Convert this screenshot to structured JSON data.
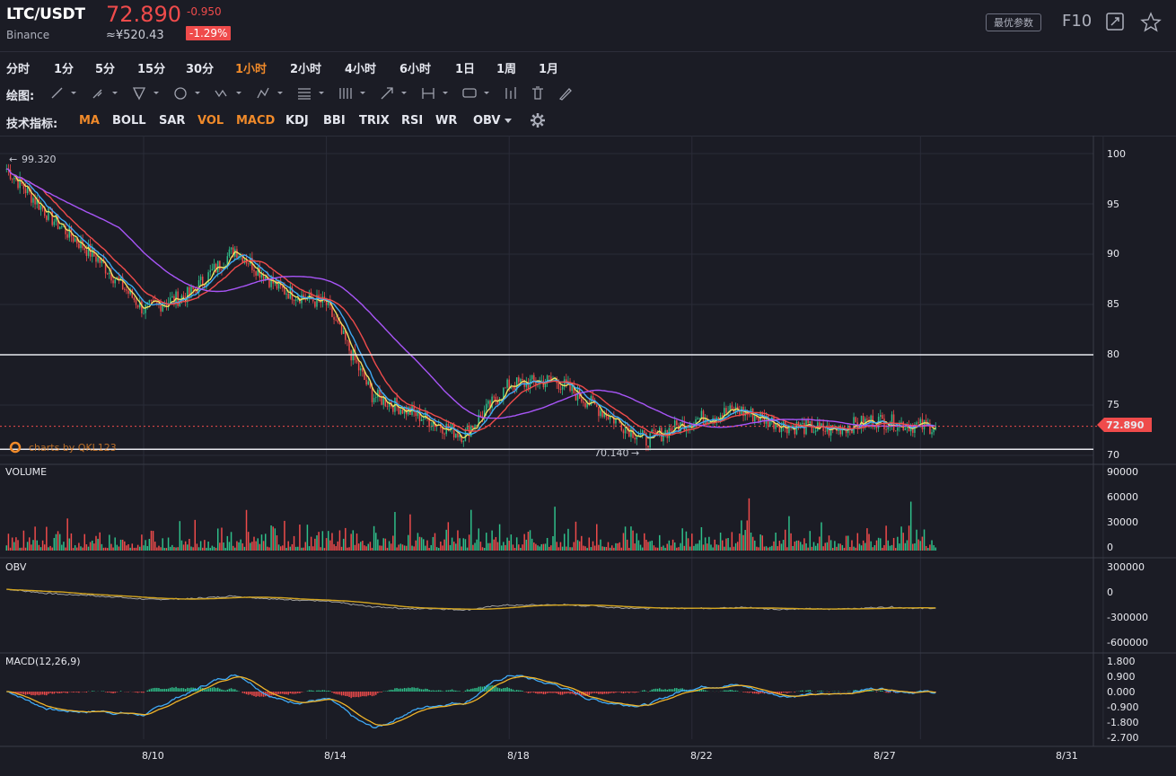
{
  "header": {
    "symbol": "LTC/USDT",
    "exchange": "Binance",
    "price": "72.890",
    "change": "-0.950",
    "cny_price": "≈¥520.43",
    "change_pct": "-1.29%",
    "best_params_label": "最优参数",
    "f10_label": "F10",
    "icons": [
      "expand-icon",
      "star-icon"
    ]
  },
  "timeframes": [
    "分时",
    "1分",
    "5分",
    "15分",
    "30分",
    "1小时",
    "2小时",
    "4小时",
    "6小时",
    "1日",
    "1周",
    "1月"
  ],
  "active_timeframe": "1小时",
  "drawing": {
    "label": "绘图:",
    "tools": [
      "line-tool-icon",
      "brush-tool-icon",
      "triangle-tool-icon",
      "circle-tool-icon",
      "wave-tool-icon",
      "pattern-tool-icon",
      "fib-tool-icon",
      "channel-tool-icon",
      "arrow-tool-icon",
      "measure-tool-icon",
      "note-tool-icon",
      "candle-tool-icon",
      "trash-icon",
      "pen-icon"
    ]
  },
  "indicators": {
    "label": "技术指标:",
    "items": [
      "MA",
      "BOLL",
      "SAR",
      "VOL",
      "MACD",
      "KDJ",
      "BBI",
      "TRIX",
      "RSI",
      "WR",
      "OBV"
    ],
    "active": [
      "MA",
      "VOL",
      "MACD"
    ]
  },
  "colors": {
    "up": "#2fbf8a",
    "down": "#ef4b4b",
    "ma1": "#f0e060",
    "ma2": "#3fa9f5",
    "ma3": "#ef4b4b",
    "ma4": "#a855f7",
    "obv": "#a0a0a0",
    "obv_ma": "#d4a51f",
    "macd_dif": "#3fa9f5",
    "macd_dea": "#f0b429",
    "accent": "#f08a2a"
  },
  "chart_data": {
    "type": "candlestick",
    "x_ticks": [
      "8/10",
      "8/14",
      "8/18",
      "8/22",
      "8/27",
      "8/31"
    ],
    "price_axis": {
      "ticks": [
        "100",
        "95",
        "90",
        "85",
        "80",
        "75",
        "70"
      ],
      "ylim": [
        70,
        100
      ]
    },
    "current_price_label": "72.890",
    "high_marker": "99.320",
    "low_marker": "70.140",
    "horizontal_levels": [
      80,
      70.6
    ],
    "watermark": "charts by QKL123",
    "price_path": [
      {
        "d": "8/07",
        "v": 98.5
      },
      {
        "d": "8/08",
        "v": 93.5
      },
      {
        "d": "8/09",
        "v": 89.5
      },
      {
        "d": "8/10",
        "v": 84.5
      },
      {
        "d": "8/11",
        "v": 86.0
      },
      {
        "d": "8/12",
        "v": 90.5
      },
      {
        "d": "8/13",
        "v": 86.5
      },
      {
        "d": "8/14",
        "v": 85.0
      },
      {
        "d": "8/15",
        "v": 76.0
      },
      {
        "d": "8/16",
        "v": 74.0
      },
      {
        "d": "8/17",
        "v": 72.0
      },
      {
        "d": "8/18",
        "v": 77.0
      },
      {
        "d": "8/19",
        "v": 77.5
      },
      {
        "d": "8/20",
        "v": 74.5
      },
      {
        "d": "8/21",
        "v": 71.5
      },
      {
        "d": "8/22",
        "v": 73.5
      },
      {
        "d": "8/23",
        "v": 74.5
      },
      {
        "d": "8/24",
        "v": 73.0
      },
      {
        "d": "8/25",
        "v": 72.5
      },
      {
        "d": "8/26",
        "v": 73.5
      },
      {
        "d": "8/27",
        "v": 72.89
      }
    ],
    "volume": {
      "label": "VOLUME",
      "ticks": [
        "90000",
        "60000",
        "30000",
        "0"
      ],
      "ylim": [
        0,
        90000
      ]
    },
    "obv": {
      "label": "OBV",
      "ticks": [
        "300000",
        "0",
        "-300000",
        "-600000"
      ],
      "ylim": [
        -600000,
        300000
      ]
    },
    "macd": {
      "label": "MACD(12,26,9)",
      "ticks": [
        "1.800",
        "0.900",
        "0.000",
        "-0.900",
        "-1.800",
        "-2.700"
      ],
      "ylim": [
        -2.7,
        1.8
      ]
    }
  }
}
